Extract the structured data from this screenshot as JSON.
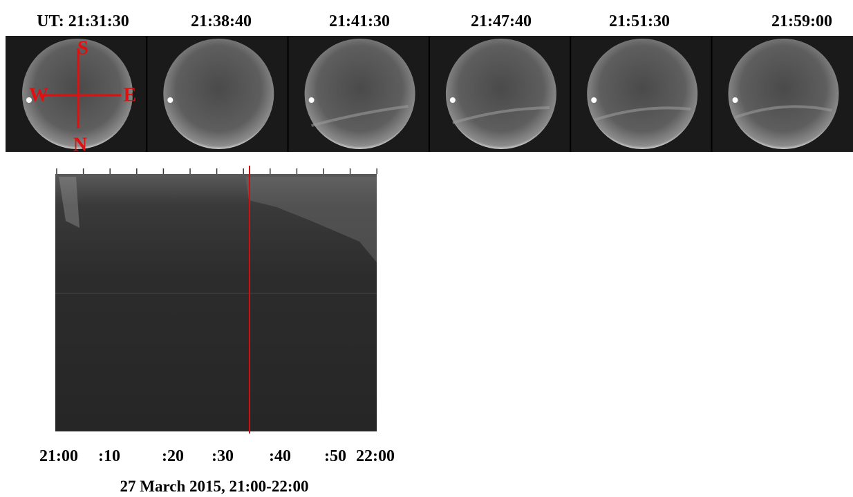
{
  "panels": {
    "time_labels": [
      "UT: 21:31:30",
      "21:38:40",
      "21:41:30",
      "21:47:40",
      "21:51:30",
      "21:59:00"
    ]
  },
  "compass": {
    "south": "S",
    "west": "W",
    "east": "E",
    "north": "N"
  },
  "keogram": {
    "tick_labels": [
      "21:00",
      ":10",
      ":20",
      ":30",
      ":40",
      ":50",
      "22:00"
    ],
    "caption": "27 March 2015, 21:00-22:00"
  }
}
